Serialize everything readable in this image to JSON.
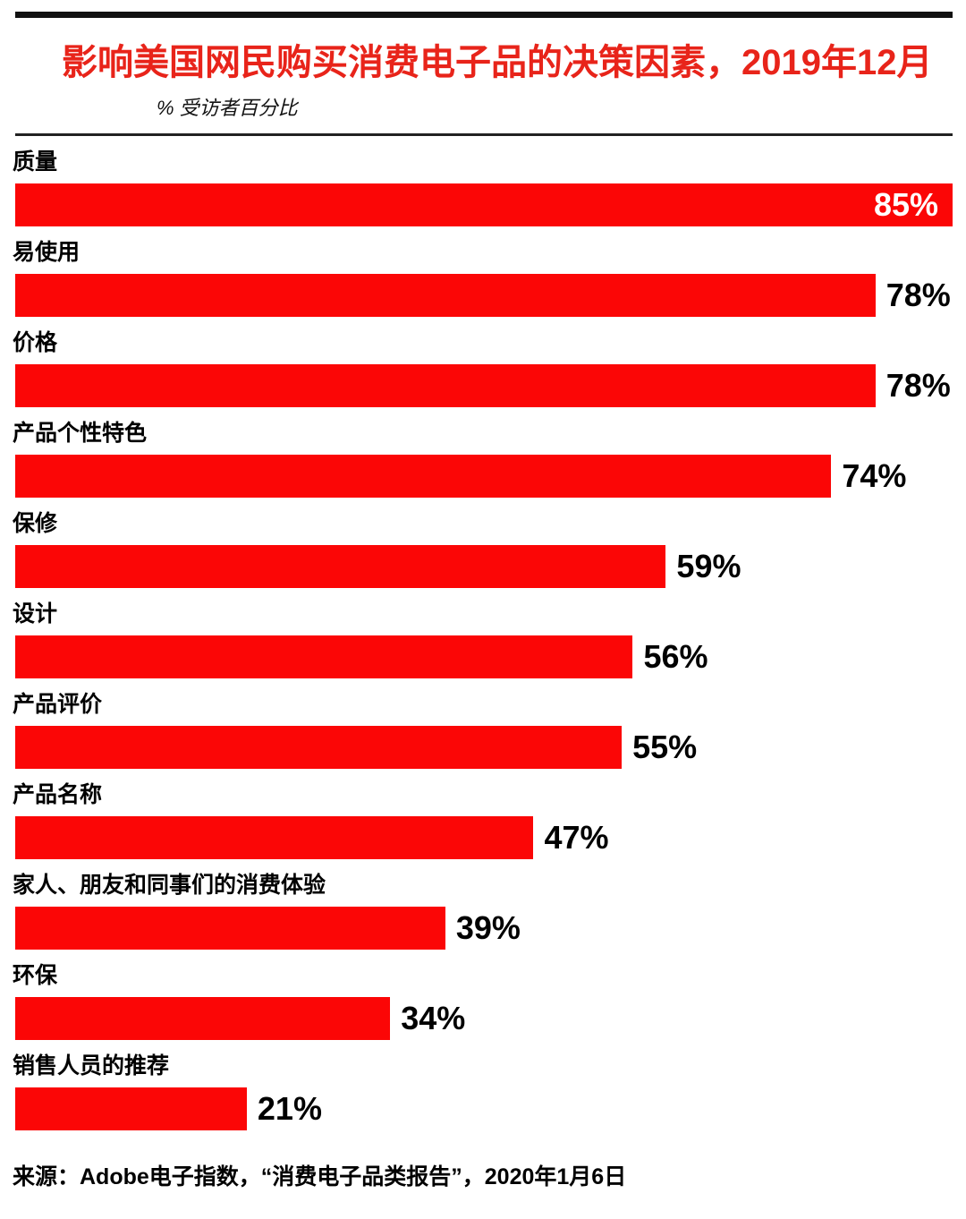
{
  "colors": {
    "bar": "#fb0606",
    "title": "#e8241a",
    "value_label_inside": "#ffffff",
    "value_label_outside": "#000000",
    "rule": "#111111"
  },
  "footer": {
    "source": "来源：Adobe电子指数，“消费电子品类报告”，2020年1月6日"
  },
  "chart_data": {
    "type": "bar",
    "orientation": "horizontal",
    "title": "影响美国网民购买消费电子品的决策因素，2019年12月",
    "ylabel": "% 受访者百分比",
    "xlim": [
      0,
      85
    ],
    "scale_max": 85,
    "grid": false,
    "legend": false,
    "categories": [
      "质量",
      "易使用",
      "价格",
      "产品个性特色",
      "保修",
      "设计",
      "产品评价",
      "产品名称",
      "家人、朋友和同事们的消费体验",
      "环保",
      "销售人员的推荐"
    ],
    "values": [
      85,
      78,
      78,
      74,
      59,
      56,
      55,
      47,
      39,
      34,
      21
    ],
    "bars": [
      {
        "label": "质量",
        "value": 85,
        "value_label": "85%",
        "value_inside": true
      },
      {
        "label": "易使用",
        "value": 78,
        "value_label": "78%",
        "value_inside": false
      },
      {
        "label": "价格",
        "value": 78,
        "value_label": "78%",
        "value_inside": false
      },
      {
        "label": "产品个性特色",
        "value": 74,
        "value_label": "74%",
        "value_inside": false
      },
      {
        "label": "保修",
        "value": 59,
        "value_label": "59%",
        "value_inside": false
      },
      {
        "label": "设计",
        "value": 56,
        "value_label": "56%",
        "value_inside": false
      },
      {
        "label": "产品评价",
        "value": 55,
        "value_label": "55%",
        "value_inside": false
      },
      {
        "label": "产品名称",
        "value": 47,
        "value_label": "47%",
        "value_inside": false
      },
      {
        "label": "家人、朋友和同事们的消费体验",
        "value": 39,
        "value_label": "39%",
        "value_inside": false
      },
      {
        "label": "环保",
        "value": 34,
        "value_label": "34%",
        "value_inside": false
      },
      {
        "label": "销售人员的推荐",
        "value": 21,
        "value_label": "21%",
        "value_inside": false
      }
    ]
  }
}
